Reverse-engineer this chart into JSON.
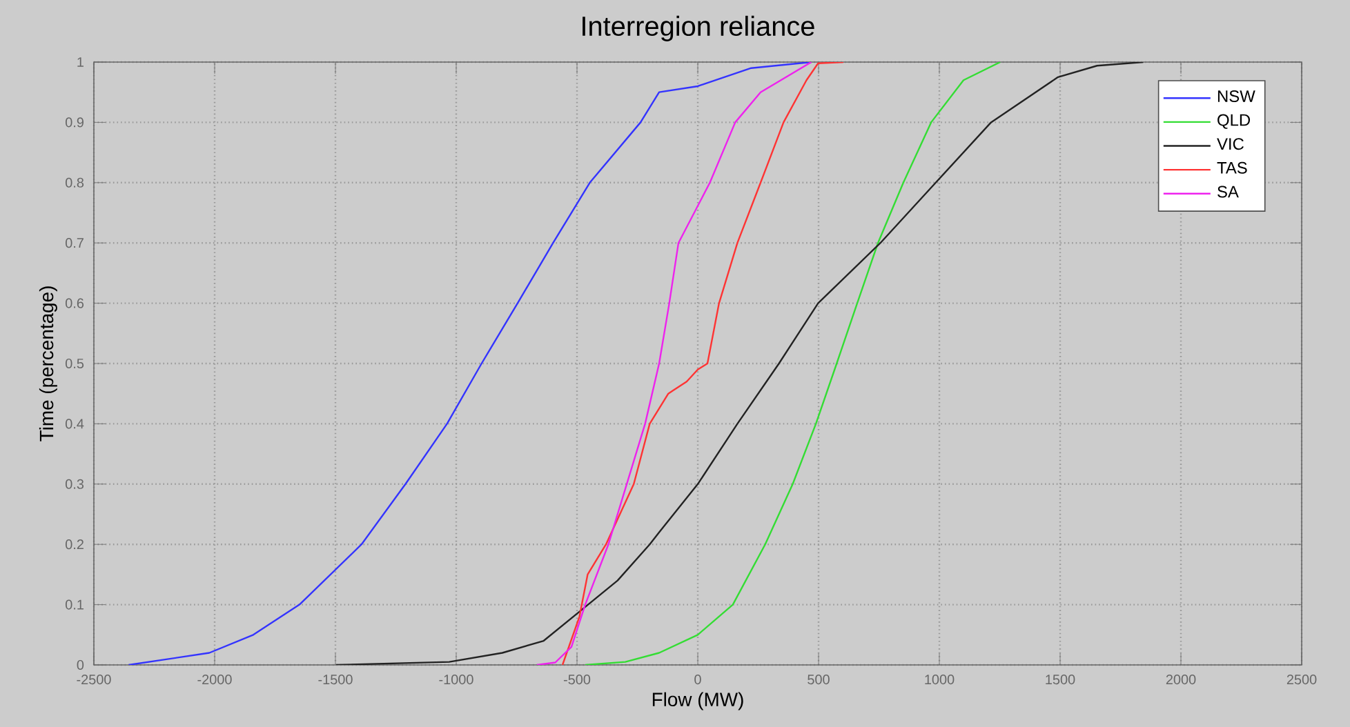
{
  "chart_data": {
    "type": "line",
    "title": "Interregion reliance",
    "xlabel": "Flow (MW)",
    "ylabel": "Time (percentage)",
    "xlim": [
      -2500,
      2500
    ],
    "ylim": [
      0,
      1
    ],
    "xticks": [
      -2500,
      -2000,
      -1500,
      -1000,
      -500,
      0,
      500,
      1000,
      1500,
      2000,
      2500
    ],
    "yticks": [
      0,
      0.1,
      0.2,
      0.3,
      0.4,
      0.5,
      0.6,
      0.7,
      0.8,
      0.9,
      1
    ],
    "grid": true,
    "legend": "top right",
    "series": [
      {
        "name": "NSW",
        "color": "#3333ff",
        "x": [
          -2356,
          -2022,
          -1840,
          -1649,
          -1392,
          -1210,
          -1038,
          -895,
          -746,
          -599,
          -447,
          -237,
          -160,
          0,
          221,
          470
        ],
        "values": [
          0,
          0.02,
          0.05,
          0.1,
          0.2,
          0.3,
          0.4,
          0.5,
          0.6,
          0.7,
          0.8,
          0.9,
          0.95,
          0.96,
          0.99,
          1
        ]
      },
      {
        "name": "QLD",
        "color": "#33dd33",
        "x": [
          -466,
          -300,
          -160,
          0,
          145,
          279,
          393,
          489,
          575,
          660,
          746,
          851,
          966,
          1100,
          1252
        ],
        "values": [
          0,
          0.005,
          0.02,
          0.05,
          0.1,
          0.2,
          0.3,
          0.4,
          0.5,
          0.6,
          0.7,
          0.8,
          0.9,
          0.97,
          1
        ]
      },
      {
        "name": "VIC",
        "color": "#222222",
        "x": [
          -1497,
          -1029,
          -809,
          -638,
          -485,
          -332,
          -199,
          -160,
          0,
          164,
          336,
          498,
          756,
          985,
          1214,
          1491,
          1653,
          1844
        ],
        "values": [
          0,
          0.005,
          0.02,
          0.04,
          0.09,
          0.14,
          0.2,
          0.22,
          0.3,
          0.4,
          0.5,
          0.6,
          0.7,
          0.8,
          0.9,
          0.975,
          0.994,
          1
        ]
      },
      {
        "name": "TAS",
        "color": "#ff3333",
        "x": [
          -560,
          -490,
          -456,
          -380,
          -265,
          -199,
          -122,
          -103,
          -46,
          0,
          40,
          88,
          164,
          260,
          355,
          450,
          498,
          603
        ],
        "values": [
          0,
          0.08,
          0.15,
          0.2,
          0.3,
          0.4,
          0.45,
          0.455,
          0.47,
          0.49,
          0.5,
          0.6,
          0.7,
          0.8,
          0.9,
          0.97,
          0.998,
          1
        ]
      },
      {
        "name": "SA",
        "color": "#ee22ee",
        "x": [
          -666,
          -590,
          -523,
          -466,
          -370,
          -294,
          -218,
          -160,
          -118,
          -80,
          50,
          155,
          260,
          470
        ],
        "values": [
          0,
          0.004,
          0.03,
          0.1,
          0.2,
          0.3,
          0.4,
          0.5,
          0.6,
          0.7,
          0.8,
          0.9,
          0.95,
          1
        ]
      }
    ]
  }
}
